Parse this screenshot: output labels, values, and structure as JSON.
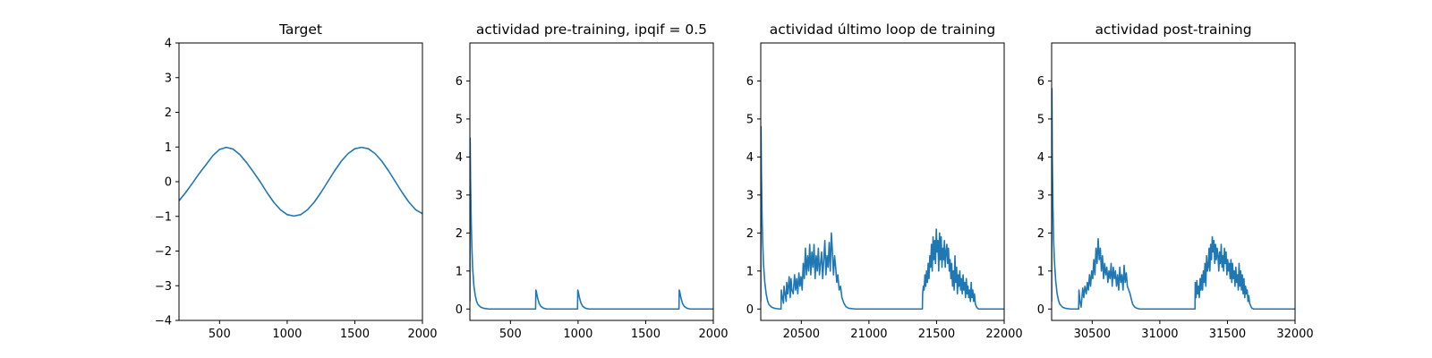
{
  "colors": {
    "line": "#1f77b4",
    "frame": "#000000",
    "background": "#ffffff"
  },
  "chart_data": [
    {
      "type": "line",
      "title": "Target",
      "xlabel": "",
      "ylabel": "",
      "xlim": [
        200,
        2000
      ],
      "ylim": [
        -4,
        4
      ],
      "xticks": [
        500,
        1000,
        1500,
        2000
      ],
      "yticks": [
        -4,
        -3,
        -2,
        -1,
        0,
        1,
        2,
        3,
        4
      ],
      "grid": false,
      "series": [
        {
          "name": "target",
          "x": [
            200,
            250,
            300,
            350,
            400,
            450,
            500,
            550,
            600,
            650,
            700,
            750,
            800,
            850,
            900,
            950,
            1000,
            1050,
            1100,
            1150,
            1200,
            1250,
            1300,
            1350,
            1400,
            1450,
            1500,
            1550,
            1600,
            1650,
            1700,
            1750,
            1800,
            1850,
            1900,
            1950,
            2000
          ],
          "y": [
            -0.55,
            -0.31,
            -0.04,
            0.24,
            0.49,
            0.75,
            0.93,
            0.99,
            0.94,
            0.78,
            0.55,
            0.28,
            0.0,
            -0.31,
            -0.59,
            -0.81,
            -0.95,
            -0.99,
            -0.95,
            -0.81,
            -0.59,
            -0.31,
            0.0,
            0.31,
            0.59,
            0.81,
            0.95,
            0.99,
            0.95,
            0.81,
            0.59,
            0.31,
            0.0,
            -0.31,
            -0.59,
            -0.81,
            -0.92
          ]
        }
      ]
    },
    {
      "type": "line",
      "title": "actividad pre-training, ipqif = 0.5",
      "xlabel": "",
      "ylabel": "",
      "xlim": [
        200,
        2000
      ],
      "ylim": [
        -0.3,
        7.0
      ],
      "xticks": [
        500,
        1000,
        1500,
        2000
      ],
      "yticks": [
        0,
        1,
        2,
        3,
        4,
        5,
        6
      ],
      "grid": false,
      "series": [
        {
          "name": "actividad",
          "x": [
            200,
            202,
            205,
            210,
            215,
            220,
            230,
            240,
            250,
            260,
            280,
            300,
            340,
            400,
            500,
            600,
            686,
            688,
            692,
            700,
            712,
            725,
            745,
            770,
            800,
            900,
            996,
            998,
            1002,
            1010,
            1022,
            1035,
            1055,
            1080,
            1100,
            1300,
            1500,
            1746,
            1748,
            1752,
            1760,
            1772,
            1785,
            1805,
            1830,
            1900,
            2000
          ],
          "y": [
            0.2,
            4.5,
            3.4,
            2.3,
            1.6,
            1.1,
            0.6,
            0.35,
            0.2,
            0.12,
            0.05,
            0.02,
            0.0,
            0.0,
            0.0,
            0.0,
            0.0,
            0.5,
            0.45,
            0.3,
            0.15,
            0.07,
            0.02,
            0.0,
            0.0,
            0.0,
            0.0,
            0.5,
            0.45,
            0.3,
            0.15,
            0.07,
            0.02,
            0.0,
            0.0,
            0.0,
            0.0,
            0.0,
            0.5,
            0.45,
            0.3,
            0.15,
            0.07,
            0.02,
            0.0,
            0.0,
            0.0
          ]
        }
      ]
    },
    {
      "type": "line",
      "title": "actividad último loop de training",
      "xlabel": "",
      "ylabel": "",
      "xlim": [
        20200,
        22000
      ],
      "ylim": [
        -0.3,
        7.0
      ],
      "xticks": [
        20500,
        21000,
        21500,
        22000
      ],
      "yticks": [
        0,
        1,
        2,
        3,
        4,
        5,
        6
      ],
      "grid": false,
      "series": [
        {
          "name": "actividad",
          "x": [
            20200,
            20202,
            20205,
            20210,
            20215,
            20220,
            20230,
            20240,
            20250,
            20260,
            20280,
            20300,
            20340,
            20350,
            20352,
            20360,
            20368,
            20372,
            20380,
            20388,
            20392,
            20400,
            20410,
            20418,
            20424,
            20430,
            20440,
            20450,
            20458,
            20466,
            20474,
            20482,
            20490,
            20498,
            20506,
            20514,
            20522,
            20530,
            20538,
            20546,
            20554,
            20562,
            20570,
            20578,
            20586,
            20594,
            20602,
            20610,
            20618,
            20626,
            20634,
            20642,
            20650,
            20658,
            20666,
            20674,
            20682,
            20690,
            20698,
            20706,
            20714,
            20722,
            20730,
            20738,
            20746,
            20754,
            20762,
            20770,
            20780,
            20790,
            20800,
            20815,
            20830,
            20850,
            20900,
            21000,
            21100,
            21200,
            21300,
            21395,
            21397,
            21402,
            21408,
            21414,
            21420,
            21426,
            21432,
            21438,
            21444,
            21450,
            21456,
            21462,
            21468,
            21474,
            21480,
            21486,
            21492,
            21498,
            21504,
            21510,
            21516,
            21522,
            21528,
            21534,
            21540,
            21546,
            21552,
            21558,
            21564,
            21570,
            21576,
            21582,
            21588,
            21594,
            21600,
            21606,
            21612,
            21618,
            21624,
            21630,
            21636,
            21642,
            21648,
            21654,
            21660,
            21666,
            21672,
            21678,
            21684,
            21690,
            21696,
            21702,
            21708,
            21714,
            21720,
            21726,
            21732,
            21738,
            21744,
            21750,
            21756,
            21762,
            21768,
            21774,
            21780,
            21786,
            21792,
            21798,
            21804,
            21810,
            21820,
            21830,
            21840,
            21850,
            21870,
            21900,
            21950,
            22000
          ],
          "y": [
            0.2,
            4.8,
            3.6,
            2.4,
            1.7,
            1.2,
            0.7,
            0.4,
            0.22,
            0.12,
            0.05,
            0.02,
            0.0,
            0.0,
            0.5,
            0.3,
            0.15,
            0.6,
            0.4,
            0.2,
            0.7,
            0.4,
            0.85,
            0.3,
            0.8,
            0.5,
            0.4,
            0.9,
            0.5,
            0.8,
            0.4,
            0.95,
            0.6,
            0.85,
            0.5,
            1.2,
            0.8,
            1.6,
            0.9,
            1.4,
            1.0,
            1.7,
            0.9,
            1.5,
            1.1,
            1.7,
            0.8,
            1.4,
            1.0,
            1.6,
            0.9,
            1.2,
            1.5,
            0.8,
            1.3,
            1.8,
            0.9,
            1.4,
            1.1,
            1.75,
            1.0,
            2.0,
            1.5,
            0.9,
            1.4,
            1.1,
            0.7,
            0.9,
            0.5,
            0.6,
            0.3,
            0.15,
            0.06,
            0.02,
            0.0,
            0.0,
            0.0,
            0.0,
            0.0,
            0.0,
            0.4,
            0.6,
            0.5,
            0.9,
            0.6,
            1.0,
            0.7,
            1.2,
            0.8,
            1.4,
            1.1,
            1.7,
            1.0,
            1.9,
            1.3,
            1.8,
            1.2,
            2.1,
            1.5,
            1.8,
            1.0,
            2.0,
            1.3,
            1.9,
            1.1,
            1.6,
            1.3,
            1.8,
            1.1,
            1.5,
            1.7,
            1.2,
            1.6,
            1.0,
            1.3,
            0.8,
            1.2,
            0.6,
            1.0,
            0.5,
            1.4,
            0.7,
            1.1,
            0.4,
            0.9,
            0.6,
            1.0,
            0.5,
            0.8,
            0.4,
            0.9,
            0.5,
            0.7,
            0.3,
            0.8,
            0.4,
            0.6,
            0.3,
            0.5,
            0.2,
            0.7,
            0.3,
            0.5,
            0.2,
            0.4,
            0.15,
            0.08,
            0.04,
            0.02,
            0.0,
            0.0,
            0.0,
            0.0,
            0.0,
            0.0,
            0.0,
            0.0,
            0.0
          ]
        }
      ]
    },
    {
      "type": "line",
      "title": "actividad post-training",
      "xlabel": "",
      "ylabel": "",
      "xlim": [
        30200,
        32000
      ],
      "ylim": [
        -0.3,
        7.0
      ],
      "xticks": [
        30500,
        31000,
        31500,
        32000
      ],
      "yticks": [
        0,
        1,
        2,
        3,
        4,
        5,
        6
      ],
      "grid": false,
      "series": [
        {
          "name": "actividad",
          "x": [
            30200,
            30202,
            30205,
            30210,
            30215,
            30220,
            30230,
            30240,
            30250,
            30260,
            30280,
            30300,
            30340,
            30400,
            30402,
            30410,
            30418,
            30430,
            30438,
            30446,
            30456,
            30464,
            30472,
            30480,
            30488,
            30496,
            30504,
            30512,
            30520,
            30528,
            30536,
            30544,
            30552,
            30560,
            30568,
            30576,
            30584,
            30592,
            30600,
            30608,
            30616,
            30624,
            30632,
            30640,
            30648,
            30656,
            30664,
            30672,
            30680,
            30688,
            30696,
            30704,
            30712,
            30720,
            30728,
            30736,
            30744,
            30752,
            30760,
            30770,
            30780,
            30790,
            30800,
            30815,
            30830,
            30850,
            30900,
            31000,
            31100,
            31200,
            31260,
            31262,
            31268,
            31274,
            31280,
            31286,
            31292,
            31298,
            31304,
            31310,
            31316,
            31322,
            31328,
            31334,
            31340,
            31346,
            31352,
            31358,
            31364,
            31370,
            31376,
            31382,
            31388,
            31394,
            31400,
            31406,
            31412,
            31418,
            31424,
            31430,
            31436,
            31442,
            31448,
            31454,
            31460,
            31466,
            31472,
            31478,
            31484,
            31490,
            31496,
            31502,
            31508,
            31514,
            31520,
            31526,
            31532,
            31538,
            31544,
            31550,
            31556,
            31562,
            31568,
            31574,
            31580,
            31586,
            31592,
            31598,
            31604,
            31610,
            31616,
            31622,
            31628,
            31634,
            31640,
            31646,
            31652,
            31658,
            31664,
            31670,
            31676,
            31682,
            31688,
            31694,
            31700,
            31710,
            31720,
            31730,
            31745,
            31760,
            31780,
            31820,
            31900,
            32000
          ],
          "y": [
            0.2,
            5.8,
            4.0,
            2.7,
            1.8,
            1.3,
            0.75,
            0.42,
            0.24,
            0.13,
            0.05,
            0.02,
            0.0,
            0.0,
            0.5,
            0.2,
            0.05,
            0.55,
            0.3,
            0.6,
            0.4,
            0.7,
            0.5,
            0.9,
            0.6,
            1.0,
            0.8,
            1.3,
            0.9,
            1.6,
            1.2,
            1.85,
            1.3,
            1.6,
            1.0,
            1.4,
            0.8,
            1.2,
            0.9,
            1.1,
            0.7,
            1.0,
            0.8,
            1.2,
            0.6,
            1.1,
            0.8,
            1.0,
            0.6,
            0.9,
            0.5,
            1.1,
            0.7,
            0.9,
            0.5,
            1.15,
            0.7,
            0.95,
            0.6,
            0.5,
            0.4,
            0.25,
            0.12,
            0.05,
            0.02,
            0.0,
            0.0,
            0.0,
            0.0,
            0.0,
            0.0,
            0.7,
            0.3,
            0.75,
            0.4,
            0.6,
            0.3,
            0.8,
            0.5,
            0.9,
            0.5,
            1.0,
            0.7,
            1.2,
            0.6,
            1.4,
            1.0,
            1.1,
            1.6,
            1.0,
            1.7,
            1.3,
            1.9,
            1.5,
            1.8,
            1.2,
            1.7,
            1.3,
            1.6,
            1.4,
            1.0,
            1.5,
            1.2,
            1.7,
            1.1,
            1.4,
            1.0,
            1.6,
            1.2,
            1.5,
            0.9,
            1.3,
            1.0,
            1.2,
            0.8,
            1.3,
            0.7,
            1.2,
            0.8,
            1.0,
            0.6,
            1.1,
            0.7,
            0.9,
            0.5,
            1.2,
            0.6,
            1.0,
            0.5,
            0.9,
            0.4,
            0.8,
            0.3,
            0.6,
            0.4,
            0.5,
            0.2,
            0.35,
            0.15,
            0.1,
            0.05,
            0.02,
            0.01,
            0.0,
            0.0,
            0.0,
            0.0,
            0.0,
            0.0,
            0.0,
            0.0,
            0.0,
            0.0,
            0.0
          ]
        }
      ]
    }
  ]
}
